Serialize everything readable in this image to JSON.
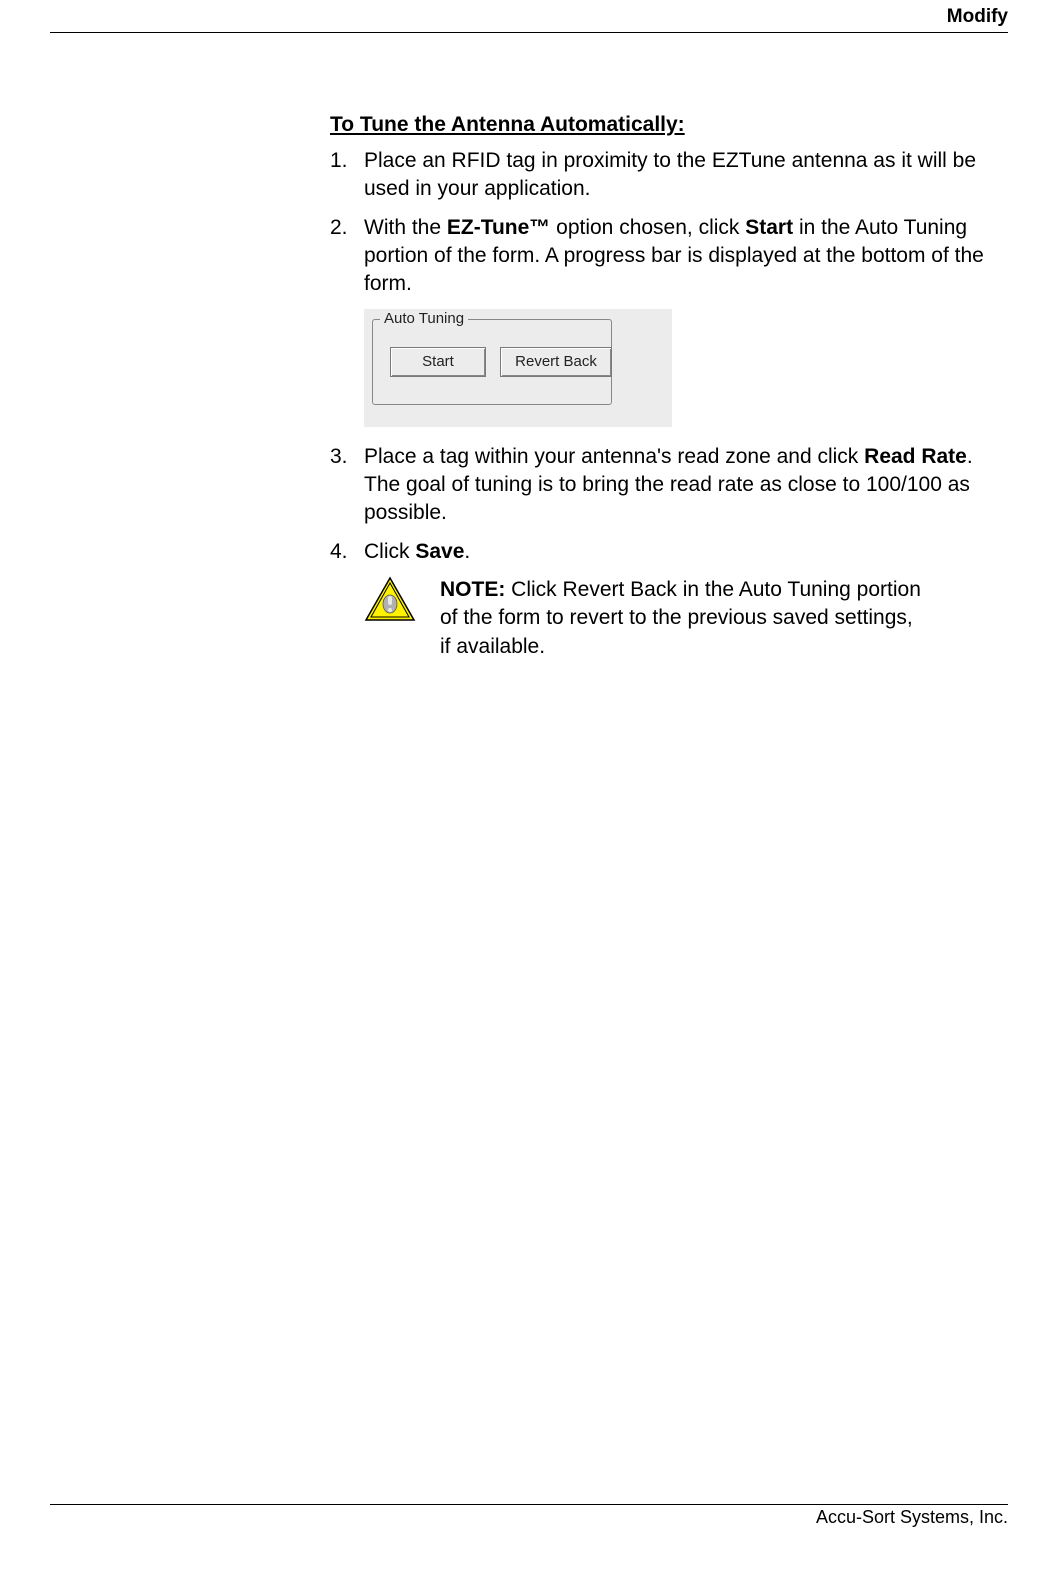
{
  "header": {
    "title": "Modify"
  },
  "section_title": "To Tune the Antenna Automatically:",
  "steps": [
    {
      "num": "1.",
      "segments": [
        {
          "text": "Place an RFID tag in proximity to the EZTune antenna as it will be used in your application.",
          "bold": false
        }
      ]
    },
    {
      "num": "2.",
      "segments": [
        {
          "text": "With the ",
          "bold": false
        },
        {
          "text": "EZ-Tune™",
          "bold": true
        },
        {
          "text": " option chosen, click ",
          "bold": false
        },
        {
          "text": "Start",
          "bold": true
        },
        {
          "text": " in the Auto Tuning portion of the form. A progress bar is displayed at the bottom of the form.",
          "bold": false
        }
      ]
    },
    {
      "num": "3.",
      "segments": [
        {
          "text": "Place a tag within your antenna's read zone and click ",
          "bold": false
        },
        {
          "text": "Read Rate",
          "bold": true
        },
        {
          "text": ". The goal of tuning is to bring the read rate as close to 100/100 as possible.",
          "bold": false
        }
      ]
    },
    {
      "num": "4.",
      "segments": [
        {
          "text": "Click ",
          "bold": false
        },
        {
          "text": "Save",
          "bold": true
        },
        {
          "text": ".",
          "bold": false
        }
      ]
    }
  ],
  "figure": {
    "group_label": "Auto Tuning",
    "start_label": "Start",
    "revert_label": "Revert Back",
    "bg_color": "#ececec"
  },
  "note": {
    "label": "NOTE:",
    "text": " Click Revert Back in the Auto Tuning portion of the form to revert to the previous saved settings, if available.",
    "icon_fill": "#fef200",
    "icon_stroke": "#000000",
    "icon_inner": "#808080"
  },
  "footer": {
    "text": "Accu-Sort Systems, Inc."
  }
}
